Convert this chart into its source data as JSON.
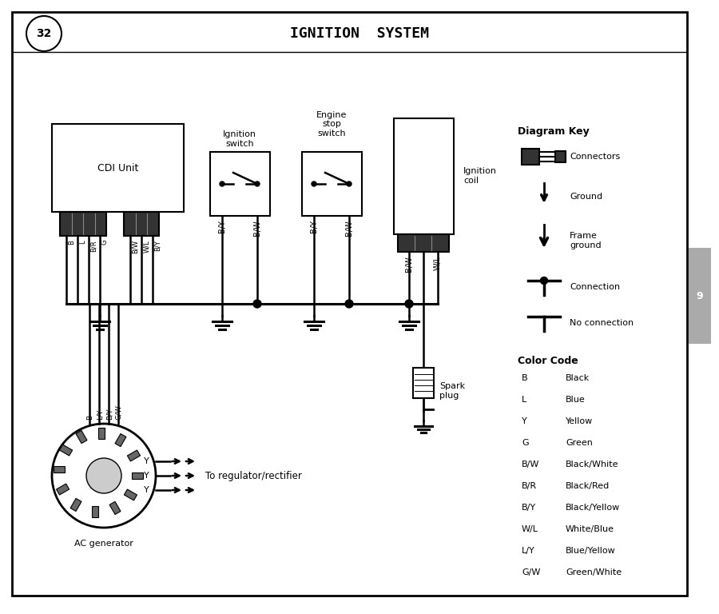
{
  "title": "IGNITION  SYSTEM",
  "page_num": "32",
  "bg_color": "#ffffff",
  "border_color": "#000000",
  "color_codes": [
    [
      "B",
      "Black"
    ],
    [
      "L",
      "Blue"
    ],
    [
      "Y",
      "Yellow"
    ],
    [
      "G",
      "Green"
    ],
    [
      "B/W",
      "Black/White"
    ],
    [
      "B/R",
      "Black/Red"
    ],
    [
      "B/Y",
      "Black/Yellow"
    ],
    [
      "W/L",
      "White/Blue"
    ],
    [
      "L/Y",
      "Blue/Yellow"
    ],
    [
      "G/W",
      "Green/White"
    ]
  ],
  "cdi_wires": [
    "B",
    "L",
    "B/R",
    "G",
    "B/W",
    "W/L",
    "B/Y"
  ],
  "ign_switch_wires": [
    "B/Y",
    "B/W"
  ],
  "stop_switch_wires": [
    "B/Y",
    "B/W"
  ],
  "coil_wires": [
    "B/W",
    "W/L"
  ],
  "gen_wires": [
    "B",
    "L/Y",
    "B/Y",
    "G/W"
  ]
}
